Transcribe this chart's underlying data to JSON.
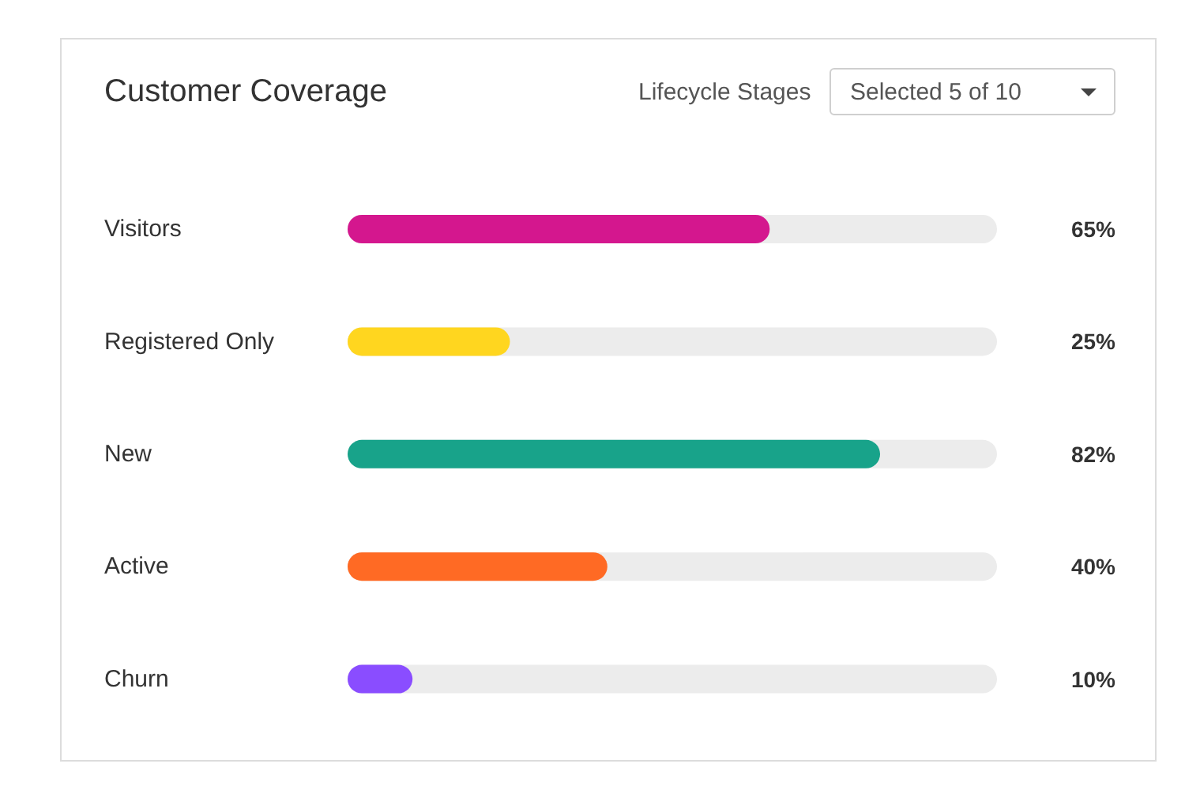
{
  "chart_data": {
    "type": "bar",
    "orientation": "horizontal",
    "title": "Customer Coverage",
    "annotations": [
      "Lifecycle Stages",
      "Selected 5 of 10"
    ],
    "categories": [
      "Visitors",
      "Registered Only",
      "New",
      "Active",
      "Churn"
    ],
    "values": [
      65,
      25,
      82,
      40,
      10
    ],
    "colors": [
      "#d4178e",
      "#ffd61f",
      "#18a38a",
      "#ff6a24",
      "#8a4dff"
    ],
    "value_labels": [
      "65%",
      "25%",
      "82%",
      "40%",
      "10%"
    ],
    "xlim": [
      0,
      100
    ],
    "tick_labels": "y"
  }
}
